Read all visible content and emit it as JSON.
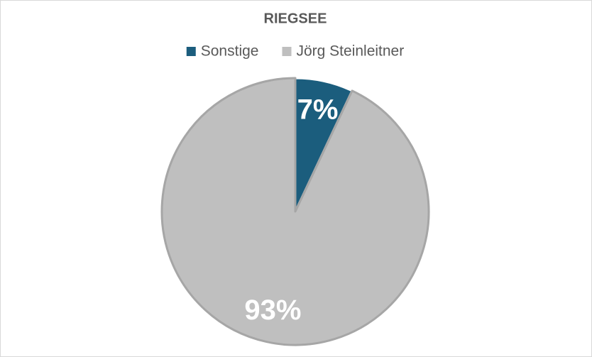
{
  "chart_data": {
    "type": "pie",
    "title": "RIEGSEE",
    "categories": [
      "Sonstige",
      "Jörg Steinleitner"
    ],
    "values": [
      7,
      93
    ],
    "value_labels": [
      "7%",
      "93%"
    ],
    "colors": [
      "#1b5d7d",
      "#bfbfbf"
    ],
    "legend": "top"
  }
}
